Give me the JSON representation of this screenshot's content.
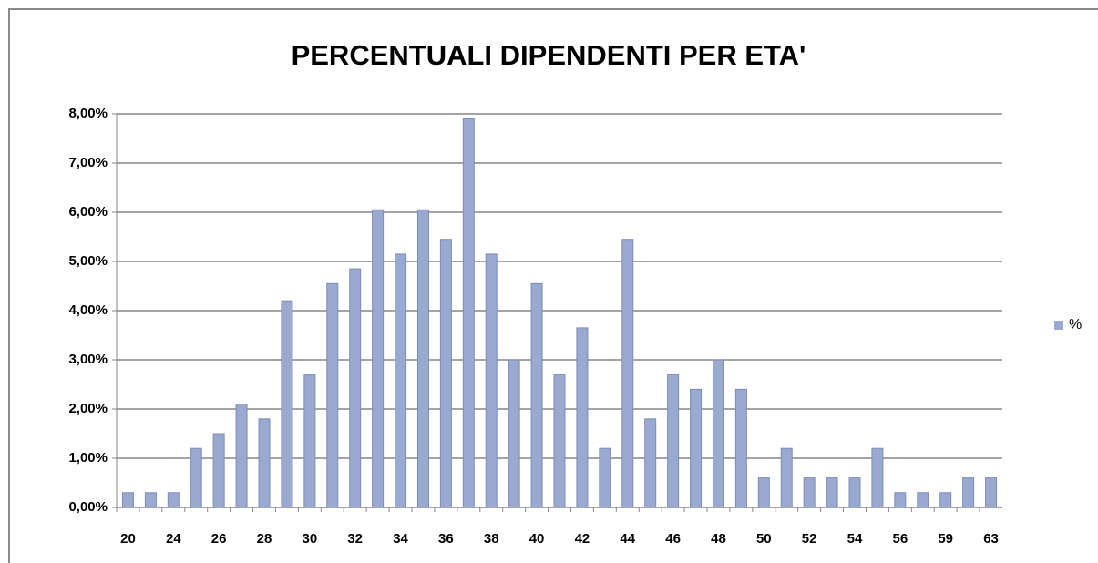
{
  "chart_data": {
    "type": "bar",
    "title": "PERCENTUALI DIPENDENTI PER ETA'",
    "categories": [
      "20",
      null,
      "24",
      null,
      "26",
      null,
      "28",
      null,
      "30",
      null,
      "32",
      null,
      "34",
      null,
      "36",
      null,
      "38",
      null,
      "40",
      null,
      "42",
      null,
      "44",
      null,
      "46",
      null,
      "48",
      null,
      "50",
      null,
      "52",
      null,
      "54",
      null,
      "56",
      null,
      "59",
      null,
      "63"
    ],
    "series": [
      {
        "name": "%",
        "color": "#9aa9cf",
        "values": [
          0.3,
          0.3,
          0.3,
          1.2,
          1.5,
          2.1,
          1.8,
          4.2,
          2.7,
          4.55,
          4.85,
          6.05,
          5.15,
          6.05,
          5.45,
          7.9,
          5.15,
          3.0,
          4.55,
          2.7,
          3.65,
          1.2,
          5.45,
          1.8,
          2.7,
          2.4,
          3.0,
          2.4,
          0.6,
          1.2,
          0.6,
          0.6,
          0.6,
          1.2,
          0.3,
          0.3,
          0.3,
          0.6,
          0.6
        ]
      }
    ],
    "ylim": [
      0,
      8
    ],
    "yticks": [
      {
        "value": 0,
        "label": "0,00%"
      },
      {
        "value": 1,
        "label": "1,00%"
      },
      {
        "value": 2,
        "label": "2,00%"
      },
      {
        "value": 3,
        "label": "3,00%"
      },
      {
        "value": 4,
        "label": "4,00%"
      },
      {
        "value": 5,
        "label": "5,00%"
      },
      {
        "value": 6,
        "label": "6,00%"
      },
      {
        "value": 7,
        "label": "7,00%"
      },
      {
        "value": 8,
        "label": "8,00%"
      }
    ],
    "grid": true,
    "legend": "right"
  }
}
